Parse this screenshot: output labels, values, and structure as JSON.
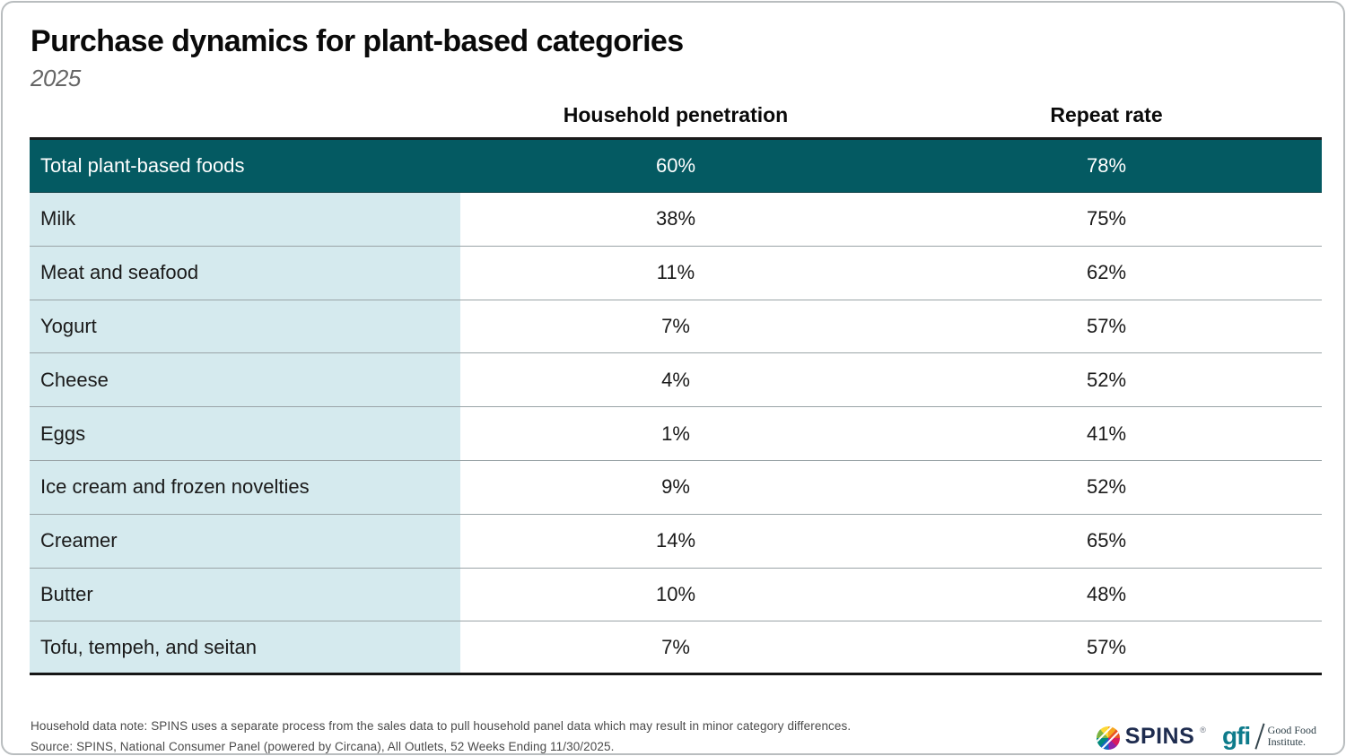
{
  "header": {
    "title": "Purchase dynamics for plant-based categories",
    "subtitle": "2025"
  },
  "table": {
    "col_penetration": "Household penetration",
    "col_repeat": "Repeat rate",
    "total": {
      "label": "Total plant-based foods",
      "penetration": "60%",
      "repeat": "78%"
    },
    "rows": [
      {
        "label": "Milk",
        "penetration": "38%",
        "repeat": "75%"
      },
      {
        "label": "Meat and seafood",
        "penetration": "11%",
        "repeat": "62%"
      },
      {
        "label": "Yogurt",
        "penetration": "7%",
        "repeat": "57%"
      },
      {
        "label": "Cheese",
        "penetration": "4%",
        "repeat": "52%"
      },
      {
        "label": "Eggs",
        "penetration": "1%",
        "repeat": "41%"
      },
      {
        "label": "Ice cream and frozen novelties",
        "penetration": "9%",
        "repeat": "52%"
      },
      {
        "label": "Creamer",
        "penetration": "14%",
        "repeat": "65%"
      },
      {
        "label": "Butter",
        "penetration": "10%",
        "repeat": "48%"
      },
      {
        "label": "Tofu, tempeh, and seitan",
        "penetration": "7%",
        "repeat": "57%"
      }
    ]
  },
  "chart_data": {
    "type": "table",
    "title": "Purchase dynamics for plant-based categories",
    "subtitle": "2025",
    "columns": [
      "Category",
      "Household penetration (%)",
      "Repeat rate (%)"
    ],
    "rows": [
      [
        "Total plant-based foods",
        60,
        78
      ],
      [
        "Milk",
        38,
        75
      ],
      [
        "Meat and seafood",
        11,
        62
      ],
      [
        "Yogurt",
        7,
        57
      ],
      [
        "Cheese",
        4,
        52
      ],
      [
        "Eggs",
        1,
        41
      ],
      [
        "Ice cream and frozen novelties",
        9,
        52
      ],
      [
        "Creamer",
        14,
        65
      ],
      [
        "Butter",
        10,
        48
      ],
      [
        "Tofu, tempeh, and seitan",
        7,
        57
      ]
    ],
    "layout": {
      "highlight_row": "Total plant-based foods",
      "highlight_color": "#045a62",
      "label_column_bg": "#d5eaee"
    }
  },
  "footer": {
    "note": "Household data note: SPINS uses a separate process from the sales data to pull household panel data which may result in minor category differences.",
    "source": "Source: SPINS, National Consumer Panel (powered by Circana), All Outlets, 52 Weeks Ending 11/30/2025.",
    "logos": {
      "spins_label": "SPINS",
      "spins_reg": "®",
      "gfi_label": "gfi",
      "gfi_line1": "Good Food",
      "gfi_line2": "Institute."
    }
  },
  "colors": {
    "highlight_row_bg": "#045a62",
    "label_cell_bg": "#d5eaee",
    "divider": "#9aa4a7",
    "spins_navy": "#1e2c4f",
    "gfi_teal": "#0e7b8b"
  }
}
